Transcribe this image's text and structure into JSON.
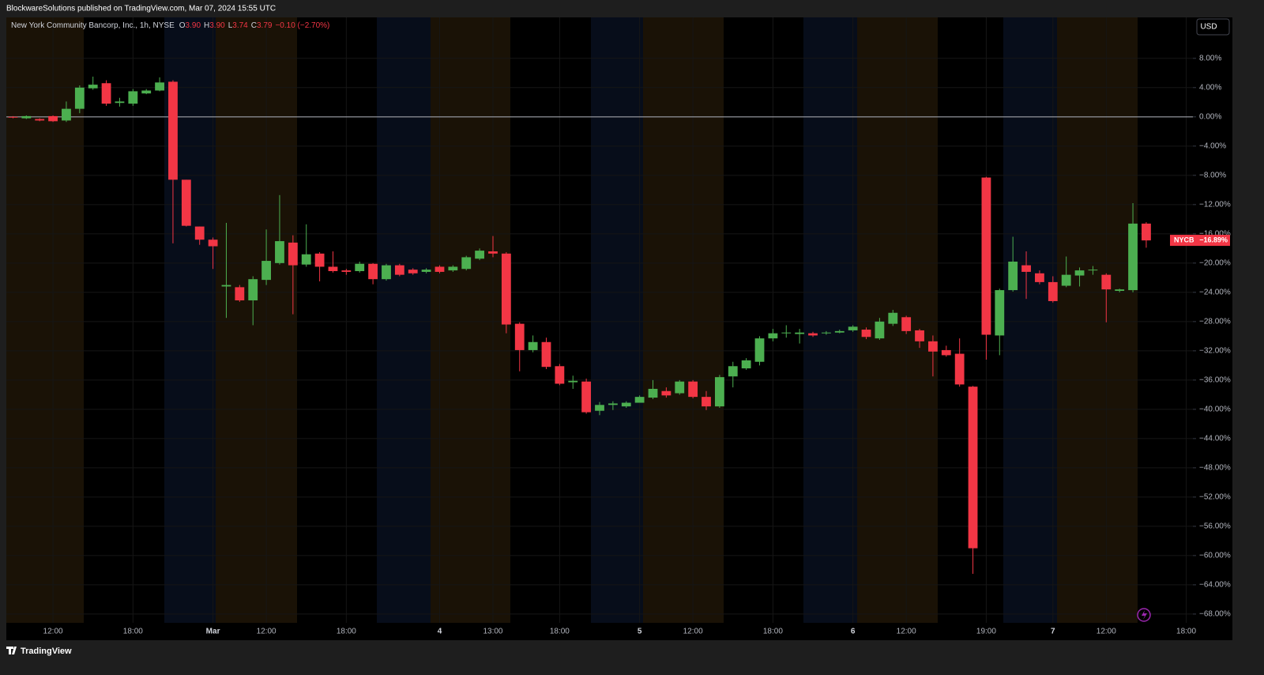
{
  "header": {
    "published": "BlockwareSolutions published on TradingView.com, Mar 07, 2024 15:55 UTC"
  },
  "legend": {
    "name": "New York Community Bancorp, Inc., 1h, NYSE",
    "items": [
      {
        "key": "O",
        "value": "3.90"
      },
      {
        "key": "H",
        "value": "3.90"
      },
      {
        "key": "L",
        "value": "3.74"
      },
      {
        "key": "C",
        "value": "3.79"
      }
    ],
    "change": "−0.10 (−2.70%)"
  },
  "currency": "USD",
  "footer": {
    "brand": "TradingView"
  },
  "chart_data": {
    "type": "candlestick",
    "categories": [
      null,
      null,
      null,
      "12:00",
      null,
      null,
      null,
      null,
      null,
      "18:00",
      null,
      null,
      null,
      null,
      null,
      "Mar",
      null,
      null,
      null,
      "12:00",
      null,
      null,
      null,
      null,
      null,
      "18:00",
      null,
      null,
      null,
      null,
      null,
      null,
      "4",
      null,
      null,
      null,
      "13:00",
      null,
      null,
      null,
      null,
      "18:00",
      null,
      null,
      null,
      null,
      null,
      "5",
      null,
      null,
      null,
      "12:00",
      null,
      null,
      null,
      null,
      null,
      "18:00",
      null,
      null,
      null,
      null,
      null,
      "6",
      null,
      null,
      null,
      "12:00",
      null,
      null,
      null,
      null,
      null,
      "19:00",
      null,
      null,
      null,
      null,
      "7",
      null,
      null,
      null,
      "12:00",
      null,
      null,
      null,
      null,
      null,
      "18:00"
    ],
    "open": [
      0,
      -0.2,
      -0.3,
      0.1,
      -0.5,
      1.1,
      3.9,
      4.6,
      1.9,
      1.8,
      3.2,
      3.6,
      4.8,
      -8.6,
      -15.0,
      -16.8,
      -23.2,
      -23.3,
      -25.1,
      -22.3,
      -20.0,
      -17.2,
      -20.2,
      -18.7,
      -20.5,
      -21.0,
      -21.1,
      -20.1,
      -22.2,
      -20.3,
      -20.9,
      -21.2,
      -20.5,
      -21.0,
      -20.8,
      -19.4,
      -18.4,
      -18.7,
      -28.3,
      -31.9,
      -30.8,
      -34.1,
      -36.3,
      -36.2,
      -40.2,
      -39.4,
      -39.6,
      -39.1,
      -38.4,
      -37.5,
      -37.8,
      -36.2,
      -38.3,
      -39.6,
      -35.5,
      -34.4,
      -33.5,
      -30.3,
      -29.6,
      -29.7,
      -29.6,
      -29.6,
      -29.5,
      -29.2,
      -29.1,
      -30.3,
      -28.3,
      -27.4,
      -29.2,
      -30.7,
      -31.9,
      -32.4,
      -36.9,
      -8.3,
      -29.9,
      -23.7,
      -20.3,
      -21.4,
      -22.6,
      -23.1,
      -21.7,
      -21.0,
      -21.6,
      -23.8,
      -23.7,
      -14.6,
      null,
      null,
      null
    ],
    "high": [
      0.1,
      0.2,
      -0.2,
      0.2,
      2.1,
      4.3,
      5.5,
      5.0,
      2.6,
      3.8,
      3.8,
      5.4,
      5.0,
      -8.6,
      -15.0,
      -16.5,
      -14.5,
      -23.0,
      -21.8,
      -15.4,
      -10.7,
      -16.2,
      -14.7,
      -18.5,
      -18.4,
      -20.8,
      -19.8,
      -20.0,
      -20.1,
      -20.1,
      -20.7,
      -20.7,
      -20.3,
      -20.3,
      -19.0,
      -18.0,
      -16.3,
      -18.5,
      -28.1,
      -29.9,
      -30.2,
      -33.8,
      -35.4,
      -35.8,
      -39.0,
      -38.9,
      -38.9,
      -38.1,
      -36.0,
      -37.0,
      -36.0,
      -36.0,
      -37.5,
      -35.3,
      -33.5,
      -33.0,
      -30.0,
      -29.0,
      -28.5,
      -29.0,
      -29.4,
      -29.3,
      -29.1,
      -28.5,
      -28.8,
      -27.5,
      -26.4,
      -27.2,
      -29.0,
      -29.9,
      -31.3,
      -30.3,
      -36.8,
      -8.2,
      -23.5,
      -16.4,
      -18.4,
      -21.0,
      -21.8,
      -19.1,
      -20.6,
      -20.4,
      -21.4,
      -23.5,
      -11.8,
      -14.4,
      null,
      null,
      null
    ],
    "low": [
      -0.2,
      -0.3,
      -0.6,
      -0.7,
      -0.7,
      0.5,
      3.7,
      1.5,
      1.4,
      1.5,
      3.1,
      3.5,
      -17.3,
      -15.0,
      -17.5,
      -20.8,
      -27.5,
      -25.3,
      -28.5,
      -23.0,
      -20.2,
      -27.0,
      -20.5,
      -22.5,
      -21.3,
      -21.6,
      -21.3,
      -22.9,
      -22.4,
      -21.8,
      -21.6,
      -21.4,
      -21.4,
      -21.2,
      -21.0,
      -19.6,
      -19.2,
      -29.6,
      -34.8,
      -32.2,
      -34.5,
      -36.7,
      -37.2,
      -40.6,
      -40.8,
      -40.1,
      -39.8,
      -38.6,
      -38.6,
      -38.4,
      -38.0,
      -38.5,
      -40.1,
      -39.8,
      -37.0,
      -34.6,
      -34.0,
      -30.7,
      -30.2,
      -31.0,
      -30.1,
      -29.8,
      -29.6,
      -29.4,
      -30.4,
      -30.5,
      -28.6,
      -29.7,
      -31.6,
      -35.5,
      -32.8,
      -36.9,
      -62.5,
      -33.2,
      -32.6,
      -23.9,
      -24.9,
      -22.9,
      -25.4,
      -23.3,
      -23.2,
      -21.6,
      -28.1,
      -24.0,
      -24.0,
      -17.9,
      null,
      null,
      null
    ],
    "close": [
      -0.1,
      0.1,
      -0.5,
      -0.6,
      1.1,
      4.0,
      4.4,
      1.8,
      2.1,
      3.5,
      3.6,
      4.7,
      -8.6,
      -14.9,
      -16.8,
      -17.7,
      -23.0,
      -25.1,
      -22.2,
      -19.7,
      -17.0,
      -20.3,
      -18.8,
      -20.5,
      -21.1,
      -21.2,
      -20.1,
      -22.2,
      -20.3,
      -21.6,
      -21.4,
      -20.9,
      -21.2,
      -20.5,
      -19.2,
      -18.3,
      -18.7,
      -28.4,
      -31.9,
      -30.8,
      -34.2,
      -36.5,
      -36.1,
      -40.4,
      -39.4,
      -39.2,
      -39.1,
      -38.3,
      -37.2,
      -38.1,
      -36.2,
      -38.3,
      -39.6,
      -35.6,
      -34.1,
      -33.3,
      -30.3,
      -29.6,
      -29.5,
      -29.5,
      -29.9,
      -29.5,
      -29.3,
      -28.7,
      -30.1,
      -28.0,
      -26.8,
      -29.3,
      -30.7,
      -32.1,
      -32.6,
      -36.6,
      -59.0,
      -29.8,
      -23.7,
      -19.8,
      -21.2,
      -22.6,
      -25.2,
      -21.6,
      -21.0,
      -20.9,
      -23.6,
      -23.6,
      -14.6,
      -16.9,
      null,
      null,
      null
    ],
    "up_color": "#4caf50",
    "down_color": "#f23645",
    "ylim": [
      -69.2,
      13.6
    ],
    "yticks": [
      {
        "value": 8,
        "label": "8.00%"
      },
      {
        "value": 4,
        "label": "4.00%"
      },
      {
        "value": 0,
        "label": "0.00%"
      },
      {
        "value": -4,
        "label": "−4.00%"
      },
      {
        "value": -8,
        "label": "−8.00%"
      },
      {
        "value": -12,
        "label": "−12.00%"
      },
      {
        "value": -16,
        "label": "−16.00%"
      },
      {
        "value": -20,
        "label": "−20.00%"
      },
      {
        "value": -24,
        "label": "−24.00%"
      },
      {
        "value": -28,
        "label": "−28.00%"
      },
      {
        "value": -32,
        "label": "−32.00%"
      },
      {
        "value": -36,
        "label": "−36.00%"
      },
      {
        "value": -40,
        "label": "−40.00%"
      },
      {
        "value": -44,
        "label": "−44.00%"
      },
      {
        "value": -48,
        "label": "−48.00%"
      },
      {
        "value": -52,
        "label": "−52.00%"
      },
      {
        "value": -56,
        "label": "−56.00%"
      },
      {
        "value": -60,
        "label": "−60.00%"
      },
      {
        "value": -64,
        "label": "−64.00%"
      },
      {
        "value": -68,
        "label": "−68.00%"
      }
    ],
    "grid": true,
    "baseline": 0,
    "last_price": {
      "symbol": "NYCB",
      "value": -16.89,
      "label": "−16.89%"
    }
  }
}
